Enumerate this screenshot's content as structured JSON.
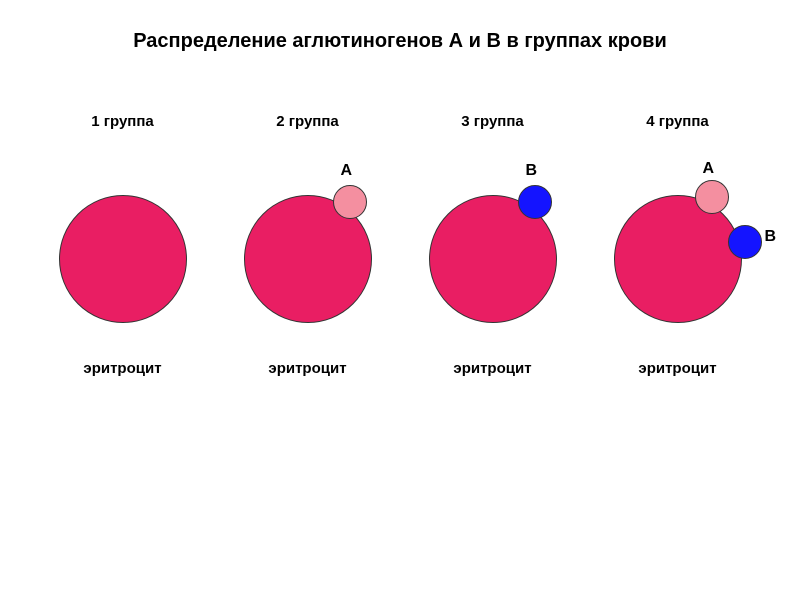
{
  "title": "Распределение аглютиногенов А и В в группах крови",
  "title_fontsize": 20,
  "title_color": "#000000",
  "label_fontsize": 15,
  "label_color": "#000000",
  "antigen_label_fontsize": 16,
  "bottom_label": "эритроцит",
  "erythrocyte": {
    "diameter": 128,
    "fill_color": "#e91e63",
    "border_color": "#333333"
  },
  "antigen_a": {
    "diameter": 34,
    "fill_color": "#f48fa0",
    "border_color": "#333333",
    "label": "А"
  },
  "antigen_b": {
    "diameter": 34,
    "fill_color": "#1414ff",
    "border_color": "#333333",
    "label": "В"
  },
  "groups": [
    {
      "label": "1 группа",
      "has_a": false,
      "has_b": false
    },
    {
      "label": "2 группа",
      "has_a": true,
      "has_b": false
    },
    {
      "label": "3 группа",
      "has_a": false,
      "has_b": true
    },
    {
      "label": "4 группа",
      "has_a": true,
      "has_b": true
    }
  ]
}
